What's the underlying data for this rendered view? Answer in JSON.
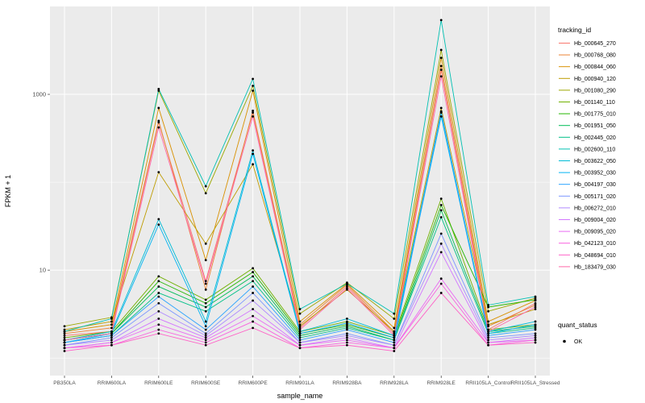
{
  "chart_data": {
    "type": "line",
    "title": "",
    "xlabel": "sample_name",
    "ylabel": "FPKM + 1",
    "y_scale": "log10",
    "ylim_log": [
      -0.2,
      4.0
    ],
    "y_ticks": [
      {
        "label": "10",
        "value": 10
      },
      {
        "label": "1000",
        "value": 1000
      }
    ],
    "y_minor": [
      1,
      100,
      10000
    ],
    "categories": [
      "PB350LA",
      "RRIM600LA",
      "RRIM600LE",
      "RRIM600SE",
      "RRIM600PE",
      "RRIM901LA",
      "RRIM928BA",
      "RRIM928LA",
      "RRIM928LE",
      "RRII105LA_Control",
      "RRII105LA_Stressed"
    ],
    "panel_bg": "#EBEBEB",
    "grid_color": "#FFFFFF",
    "point_color": "#000000",
    "tick_text_color": "#4D4D4D",
    "axis_text_color": "#000000",
    "series": [
      {
        "name": "Hb_000645_270",
        "color": "#F8766D",
        "values": [
          1.8,
          2.0,
          480,
          7.5,
          620,
          2.2,
          6.5,
          1.9,
          1900,
          2.1,
          4.2
        ]
      },
      {
        "name": "Hb_000768_080",
        "color": "#EB8335",
        "values": [
          1.9,
          2.2,
          500,
          6.0,
          650,
          2.4,
          6.8,
          2.0,
          2100,
          2.3,
          4.0
        ]
      },
      {
        "name": "Hb_000844_060",
        "color": "#D89000",
        "values": [
          2.0,
          2.4,
          700,
          13,
          1100,
          2.6,
          7.0,
          2.2,
          2600,
          2.6,
          4.5
        ]
      },
      {
        "name": "Hb_000940_120",
        "color": "#BE9C00",
        "values": [
          2.1,
          2.6,
          130,
          20,
          160,
          2.3,
          6.0,
          2.0,
          700,
          2.4,
          3.6
        ]
      },
      {
        "name": "Hb_001080_290",
        "color": "#9CA700",
        "values": [
          2.3,
          2.9,
          1100,
          75,
          1250,
          3.2,
          7.2,
          2.8,
          3200,
          3.4,
          4.8
        ]
      },
      {
        "name": "Hb_001140_110",
        "color": "#6FB000",
        "values": [
          1.7,
          2.0,
          8.5,
          4.6,
          10.5,
          2.0,
          2.6,
          1.8,
          65,
          2.1,
          2.4
        ]
      },
      {
        "name": "Hb_001775_010",
        "color": "#24B700",
        "values": [
          1.6,
          1.9,
          7.5,
          4.2,
          9.5,
          1.9,
          2.4,
          1.7,
          55,
          3.8,
          4.6
        ]
      },
      {
        "name": "Hb_001951_050",
        "color": "#00BC56",
        "values": [
          1.6,
          1.9,
          6.5,
          3.8,
          8.5,
          1.8,
          2.3,
          1.6,
          48,
          2.0,
          2.3
        ]
      },
      {
        "name": "Hb_002445_020",
        "color": "#00C087",
        "values": [
          1.5,
          1.8,
          5.5,
          3.4,
          7.5,
          1.7,
          2.2,
          1.6,
          40,
          1.9,
          2.2
        ]
      },
      {
        "name": "Hb_002600_110",
        "color": "#00C0B2",
        "values": [
          2.0,
          2.8,
          1150,
          90,
          1500,
          3.6,
          7.0,
          3.2,
          7000,
          4.0,
          5.0
        ]
      },
      {
        "name": "Hb_003622_050",
        "color": "#00BCD6",
        "values": [
          1.6,
          2.0,
          38,
          2.6,
          230,
          2.0,
          2.8,
          1.8,
          620,
          2.0,
          2.6
        ]
      },
      {
        "name": "Hb_003952_030",
        "color": "#00B3F2",
        "values": [
          1.5,
          1.9,
          33,
          2.3,
          210,
          1.9,
          2.5,
          1.7,
          560,
          1.9,
          2.4
        ]
      },
      {
        "name": "Hb_004197_030",
        "color": "#29A3FF",
        "values": [
          1.5,
          1.8,
          5.0,
          2.1,
          6.5,
          1.6,
          2.1,
          1.5,
          640,
          1.8,
          2.1
        ]
      },
      {
        "name": "Hb_005171_020",
        "color": "#7C96FF",
        "values": [
          1.4,
          1.7,
          4.2,
          1.9,
          5.5,
          1.5,
          1.9,
          1.4,
          26,
          1.7,
          1.9
        ]
      },
      {
        "name": "Hb_006272_010",
        "color": "#AF88FF",
        "values": [
          1.4,
          1.6,
          3.4,
          1.8,
          4.5,
          1.5,
          1.8,
          1.4,
          20,
          1.6,
          1.8
        ]
      },
      {
        "name": "Hb_009004_020",
        "color": "#D277FF",
        "values": [
          1.3,
          1.5,
          2.8,
          1.7,
          3.6,
          1.4,
          1.7,
          1.3,
          16,
          1.5,
          1.7
        ]
      },
      {
        "name": "Hb_009095_020",
        "color": "#E96BF3",
        "values": [
          1.3,
          1.5,
          2.4,
          1.6,
          3.0,
          1.4,
          1.6,
          1.3,
          8.0,
          1.5,
          1.6
        ]
      },
      {
        "name": "Hb_042123_010",
        "color": "#F863DF",
        "values": [
          1.3,
          1.4,
          2.1,
          1.5,
          2.6,
          1.3,
          1.5,
          1.3,
          7.0,
          1.4,
          1.6
        ]
      },
      {
        "name": "Hb_048694_010",
        "color": "#FF61C7",
        "values": [
          1.2,
          1.4,
          1.9,
          1.4,
          2.2,
          1.3,
          1.4,
          1.2,
          5.5,
          1.4,
          1.5
        ]
      },
      {
        "name": "Hb_183479_030",
        "color": "#FF68A8",
        "values": [
          1.6,
          1.9,
          420,
          7.0,
          560,
          2.1,
          6.2,
          1.8,
          1600,
          2.0,
          3.8
        ]
      }
    ],
    "legend": {
      "tracking": {
        "title": "tracking_id"
      },
      "quant": {
        "title": "quant_status",
        "items": [
          {
            "label": "OK"
          }
        ]
      }
    }
  }
}
